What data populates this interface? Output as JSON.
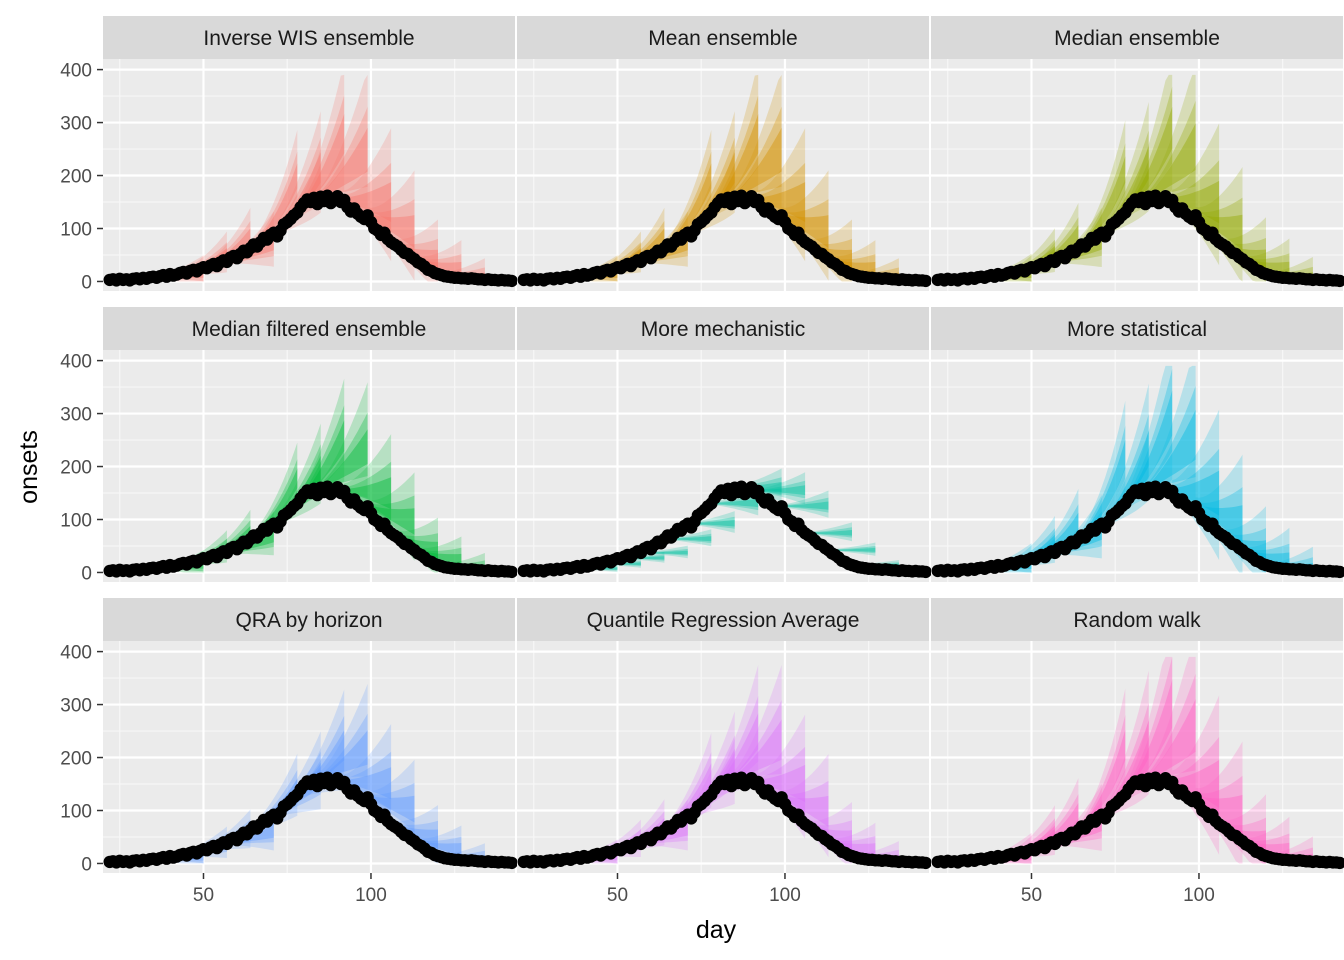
{
  "chart_data": {
    "type": "line",
    "layout": "facet-grid-3x3",
    "xlabel": "day",
    "ylabel": "onsets",
    "xlim": [
      20,
      143
    ],
    "ylim": [
      -18,
      420
    ],
    "xticks": [
      50,
      100
    ],
    "xticks_minor": [
      25,
      75,
      125
    ],
    "yticks": [
      0,
      100,
      200,
      300,
      400
    ],
    "yticks_minor": [
      50,
      150,
      250,
      350
    ],
    "observed_points": {
      "x": [
        22,
        23,
        24,
        25,
        26,
        27,
        28,
        29,
        30,
        31,
        32,
        33,
        34,
        35,
        36,
        37,
        38,
        39,
        40,
        41,
        42,
        43,
        44,
        45,
        46,
        47,
        48,
        49,
        50,
        51,
        52,
        53,
        54,
        55,
        56,
        57,
        58,
        59,
        60,
        61,
        62,
        63,
        64,
        65,
        66,
        67,
        68,
        69,
        70,
        71,
        72,
        73,
        74,
        75,
        76,
        77,
        78,
        79,
        80,
        81,
        82,
        83,
        84,
        85,
        86,
        87,
        88,
        89,
        90,
        91,
        92,
        93,
        94,
        95,
        96,
        97,
        98,
        99,
        100,
        101,
        102,
        103,
        104,
        105,
        106,
        107,
        108,
        109,
        110,
        111,
        112,
        113,
        114,
        115,
        116,
        117,
        118,
        119,
        120,
        121,
        122,
        123,
        124,
        125,
        126,
        127,
        128,
        129,
        130,
        131,
        132,
        133,
        134,
        135,
        136,
        137,
        138,
        139,
        140,
        141,
        142
      ],
      "y": [
        3,
        4,
        2,
        5,
        3,
        4,
        2,
        5,
        6,
        4,
        7,
        5,
        8,
        9,
        7,
        10,
        12,
        9,
        14,
        11,
        13,
        16,
        18,
        15,
        20,
        22,
        19,
        24,
        27,
        25,
        30,
        33,
        29,
        36,
        40,
        37,
        45,
        48,
        44,
        52,
        58,
        55,
        63,
        70,
        66,
        74,
        82,
        79,
        88,
        92,
        85,
        96,
        108,
        112,
        118,
        125,
        130,
        140,
        148,
        155,
        150,
        158,
        146,
        160,
        152,
        162,
        148,
        156,
        161,
        150,
        154,
        140,
        132,
        138,
        128,
        122,
        118,
        125,
        112,
        100,
        96,
        88,
        92,
        80,
        74,
        70,
        66,
        60,
        54,
        52,
        46,
        42,
        36,
        33,
        28,
        22,
        20,
        16,
        14,
        12,
        10,
        9,
        8,
        7,
        7,
        6,
        6,
        5,
        6,
        5,
        4,
        4,
        3,
        4,
        3,
        3,
        2,
        3,
        2,
        2,
        1
      ]
    },
    "forecast_dates": [
      36,
      43,
      50,
      57,
      64,
      71,
      78,
      85,
      92,
      99,
      106,
      113,
      120
    ],
    "horizon_days": 14,
    "interval_levels": [
      "90%",
      "50%",
      "30%"
    ],
    "facets": [
      {
        "name": "Inverse WIS ensemble",
        "color": "#F8766D",
        "spread": 0.75,
        "tilt": 1.0
      },
      {
        "name": "Mean ensemble",
        "color": "#D39200",
        "spread": 0.75,
        "tilt": 1.0
      },
      {
        "name": "Median ensemble",
        "color": "#93AA00",
        "spread": 0.8,
        "tilt": 1.05
      },
      {
        "name": "Median filtered ensemble",
        "color": "#00BA38",
        "spread": 0.6,
        "tilt": 0.9
      },
      {
        "name": "More mechanistic",
        "color": "#00C19F",
        "spread": 0.18,
        "tilt": 0.0
      },
      {
        "name": "More statistical",
        "color": "#00B9E3",
        "spread": 0.85,
        "tilt": 1.1
      },
      {
        "name": "QRA by horizon",
        "color": "#619CFF",
        "spread": 0.6,
        "tilt": 0.7
      },
      {
        "name": "Quantile Regression Average",
        "color": "#DB72FB",
        "spread": 0.7,
        "tilt": 0.85
      },
      {
        "name": "Random walk",
        "color": "#FF61C3",
        "spread": 0.9,
        "tilt": 1.1
      }
    ]
  }
}
